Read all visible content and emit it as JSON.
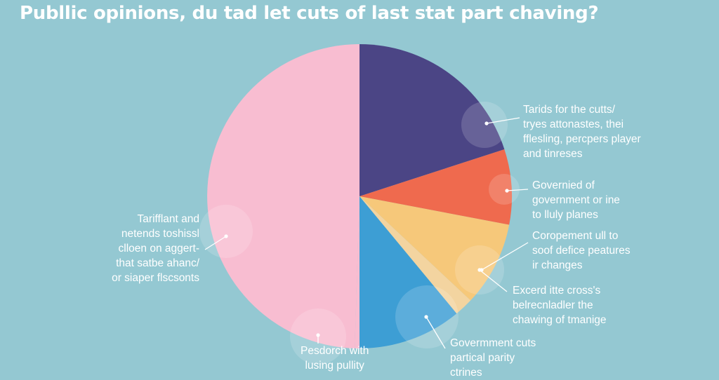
{
  "title": "Publlic opinions, du tad let cuts of last stat part chaving?",
  "chart_data": {
    "type": "pie",
    "title": "Publlic opinions, du tad let cuts of last stat part chaving?",
    "slices": [
      {
        "label": [
          "Tarids for the cutts/",
          "tryes attonastes, thei",
          "fflesling, percpers player",
          "and tinreses"
        ],
        "value": 20,
        "color": "#4b4585"
      },
      {
        "label": [
          "Governied of",
          "government or ine",
          "to lluly planes"
        ],
        "value": 8,
        "color": "#ef6a4e"
      },
      {
        "label": [
          "Coropement ull to",
          "soof defice peatures",
          "ir changes"
        ],
        "value": 9,
        "color": "#f6c87a"
      },
      {
        "label": [
          "Excerd itte cross's",
          "belrecnladler the",
          "chawing of tmanige"
        ],
        "value": 2,
        "color": "#f3d4a0"
      },
      {
        "label": [
          "Govermment cuts",
          "partical parity",
          "ctrines"
        ],
        "value": 11,
        "color": "#3d9ed4"
      },
      {
        "label": [
          "Pesdorch with",
          "lusing pullity"
        ],
        "value": 0.5,
        "color": "#f8bdd1"
      },
      {
        "label": [
          "Tarifflant and",
          "netends toshissl",
          "clloen on aggert-",
          "that satbe ahanc/",
          "or siaper flscsonts"
        ],
        "value": 49.5,
        "color": "#f8bdd1"
      }
    ],
    "legend": "none"
  }
}
